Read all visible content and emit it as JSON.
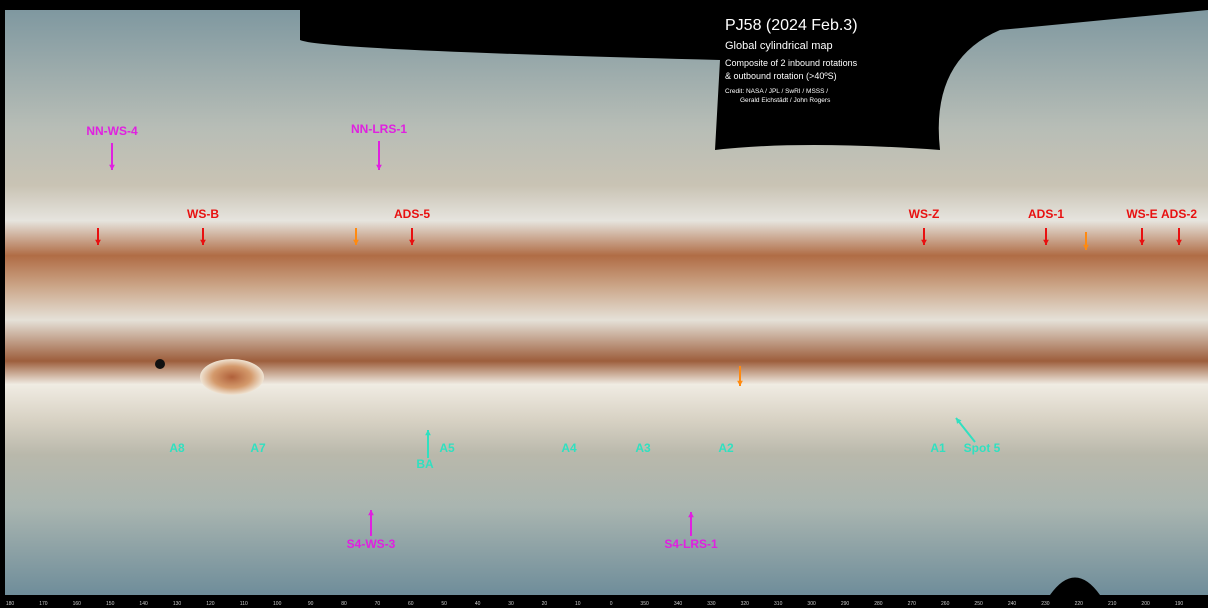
{
  "header": {
    "title": "PJ58 (2024 Feb.3)",
    "subtitle": "Global cylindrical map",
    "notes": [
      "Composite of 2 inbound rotations",
      "& outbound rotation (>40ºS)"
    ],
    "credit": [
      "Credit: NASA / JPL / SwRI / MSSS /",
      "Gerald Eichstädt / John Rogers"
    ]
  },
  "features": {
    "magenta": [
      "NN-WS-4",
      "NN-LRS-1",
      "S4-WS-3",
      "S4-LRS-1"
    ],
    "red": [
      "WS-B",
      "ADS-5",
      "WS-Z",
      "ADS-1",
      "WS-E",
      "ADS-2"
    ],
    "cyan": [
      "A8",
      "A7",
      "BA",
      "A5",
      "A4",
      "A3",
      "A2",
      "A1",
      "Spot 5"
    ]
  },
  "scale": {
    "labels": [
      "180",
      "170",
      "160",
      "150",
      "140",
      "130",
      "120",
      "110",
      "100",
      "90",
      "80",
      "70",
      "60",
      "50",
      "40",
      "30",
      "20",
      "10",
      "0",
      "350",
      "340",
      "330",
      "320",
      "310",
      "300",
      "290",
      "280",
      "270",
      "260",
      "250",
      "240",
      "230",
      "220",
      "210",
      "200",
      "190"
    ]
  }
}
